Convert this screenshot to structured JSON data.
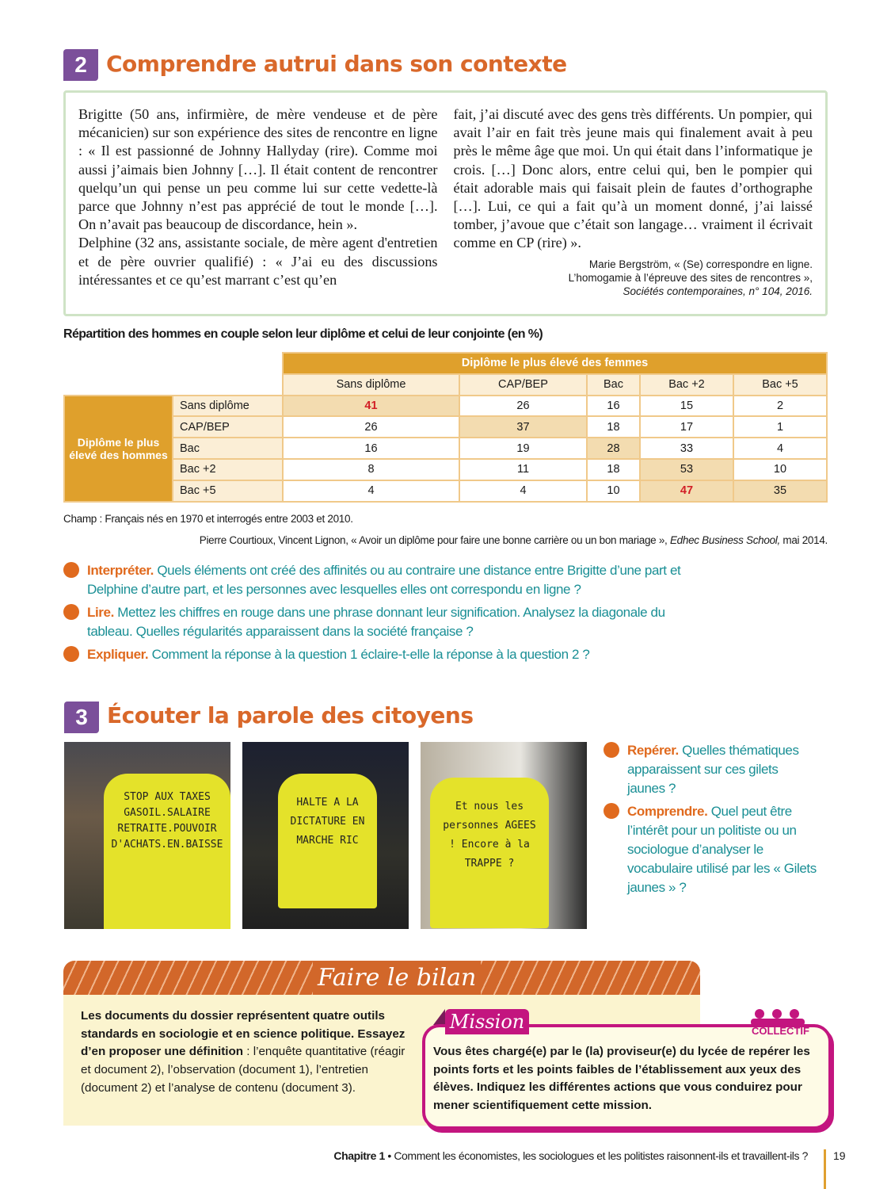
{
  "section2": {
    "number": "2",
    "title": "Comprendre autrui dans son contexte",
    "col1": "Brigitte (50 ans, infirmière, de mère vendeuse et de père mécanicien) sur son expérience des sites de rencontre en ligne : « Il est passionné de Johnny Hallyday (rire). Comme moi aussi j’aimais bien Johnny […]. Il était content de rencontrer quelqu’un qui pense un peu comme lui sur cette vedette-là parce que Johnny n’est pas apprécié de tout le monde […]. On n’avait pas beaucoup de discordance, hein ».",
    "col1b": "Delphine (32 ans, assistante sociale, de mère agent d'entretien et de père ouvrier qualifié) : « J’ai eu des discussions intéressantes et ce qu’est marrant c’est qu’en",
    "col2": "fait, j’ai discuté avec des gens très différents. Un pompier, qui avait l’air en fait très jeune mais qui finalement avait à peu près le même âge que moi. Un qui était dans l’informatique je crois. […] Donc alors, entre celui qui, ben le pompier qui était adorable mais qui faisait plein de fautes d’orthographe […]. Lui, ce qui a fait qu’à un moment donné, j’ai laissé tomber, j’avoue que c’était son langage… vraiment il écrivait comme en CP (rire) ».",
    "cite1": "Marie Bergström, « (Se) correspondre en ligne.",
    "cite2": "L’homogamie à l’épreuve des sites de rencontres »,",
    "cite3": "Sociétés contemporaines, n° 104, 2016."
  },
  "table": {
    "title": "Répartition des hommes en couple selon leur diplôme et celui de leur conjointe (en %)",
    "col_group": "Diplôme le plus élevé des femmes",
    "row_group": "Diplôme le plus élevé des hommes",
    "columns": [
      "Sans diplôme",
      "CAP/BEP",
      "Bac",
      "Bac +2",
      "Bac +5"
    ],
    "rows": [
      {
        "label": "Sans diplôme",
        "values": [
          "41",
          "26",
          "16",
          "15",
          "2"
        ]
      },
      {
        "label": "CAP/BEP",
        "values": [
          "26",
          "37",
          "18",
          "17",
          "1"
        ]
      },
      {
        "label": "Bac",
        "values": [
          "16",
          "19",
          "28",
          "33",
          "4"
        ]
      },
      {
        "label": "Bac +2",
        "values": [
          "8",
          "11",
          "18",
          "53",
          "10"
        ]
      },
      {
        "label": "Bac +5",
        "values": [
          "4",
          "4",
          "10",
          "47",
          "35"
        ]
      }
    ],
    "red_cells": [
      "0-0",
      "4-3"
    ],
    "champ": "Champ : Français nés en 1970 et interrogés entre 2003 et 2010.",
    "source": "Pierre Courtioux, Vincent Lignon, « Avoir un diplôme pour faire une bonne carrière ou un bon mariage », ",
    "source_italic": "Edhec Business School,",
    "source_end": " mai 2014."
  },
  "questions2": [
    {
      "n": "1",
      "label": "Interpréter.",
      "text": " Quels éléments ont créé des affinités ou au contraire une distance entre Brigitte d’une part et Delphine d’autre part, et les personnes avec lesquelles elles ont correspondu en ligne ?"
    },
    {
      "n": "2",
      "label": "Lire.",
      "text": " Mettez les chiffres en rouge dans une phrase donnant leur signification. Analysez la diagonale du tableau. Quelles régularités apparaissent dans la société française ?"
    },
    {
      "n": "3",
      "label": "Expliquer.",
      "text": " Comment la réponse à la question 1 éclaire-t-elle la réponse à la question 2 ?"
    }
  ],
  "section3": {
    "number": "3",
    "title": "Écouter la parole des citoyens",
    "photos": [
      {
        "vest_text": "STOP AUX TAXES GASOIL.SALAIRE RETRAITE.POUVOIR D'ACHATS.EN.BAISSE"
      },
      {
        "vest_text": "HALTE A LA DICTATURE EN MARCHE RIC"
      },
      {
        "vest_text": "Et nous les personnes AGEES ! Encore à la TRAPPE ?"
      }
    ],
    "questions": [
      {
        "n": "1",
        "label": "Repérer.",
        "text": " Quelles thématiques apparaissent sur ces gilets jaunes ?"
      },
      {
        "n": "2",
        "label": "Comprendre.",
        "text": " Quel peut être l’intérêt pour un politiste ou un sociologue d’analyser le vocabulaire utilisé par les « Gilets jaunes » ?"
      }
    ]
  },
  "bilan": {
    "title": "Faire le bilan",
    "p1": "Les documents du dossier représentent quatre outils standards en sociologie et en science politique.",
    "p2_bold": "Essayez d’en proposer une définition",
    "p2": " : l’enquête quantitative (réagir et document 2), l’observation (document 1), l’entretien (document 2) et l’analyse de contenu (document 3)."
  },
  "mission": {
    "tab": "Mission",
    "badge": "COLLECTIF",
    "text": "Vous êtes chargé(e) par le (la) proviseur(e) du lycée de repérer les points forts et les points faibles de l’établissement aux yeux des élèves. Indiquez les différentes actions que vous conduirez pour mener scientifiquement cette mission."
  },
  "footer": {
    "chapter": "Chapitre 1",
    "text": " • Comment les économistes, les sociologues et les politistes raisonnent-ils et travaillent-ils ?",
    "page": "19"
  },
  "colors": {
    "accent": "#d9682a",
    "section_badge": "#7b4f9a",
    "table": "#dfa02c",
    "question_text": "#1a8f95",
    "mission": "#c3157f"
  }
}
